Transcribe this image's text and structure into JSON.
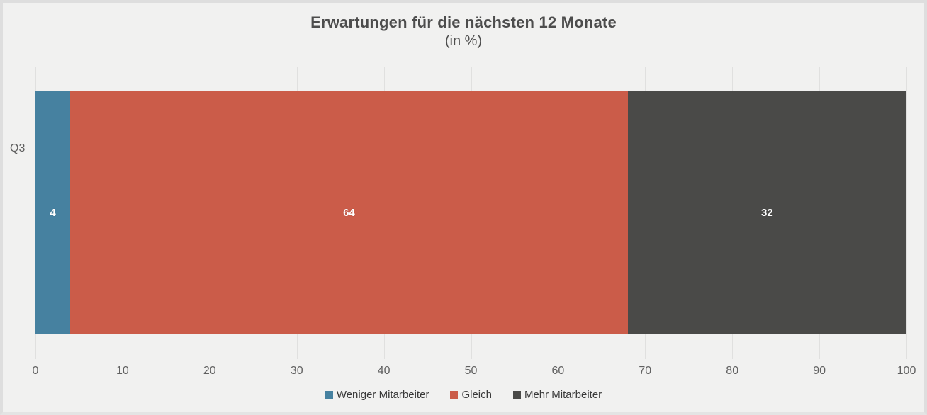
{
  "chart": {
    "title": "Erwartungen für die nächsten 12 Monate",
    "subtitle": "(in %)"
  },
  "chart_data": {
    "type": "bar",
    "orientation": "horizontal",
    "stacked": true,
    "title": "Erwartungen für die nächsten 12 Monate",
    "subtitle": "(in %)",
    "categories": [
      "Q3"
    ],
    "series": [
      {
        "name": "Weniger Mitarbeiter",
        "values": [
          4
        ],
        "color": "#4681A0"
      },
      {
        "name": "Gleich",
        "values": [
          64
        ],
        "color": "#CB5C49"
      },
      {
        "name": "Mehr Mitarbeiter",
        "values": [
          32
        ],
        "color": "#4A4A48"
      }
    ],
    "xlabel": "",
    "ylabel": "",
    "xlim": [
      0,
      100
    ],
    "xticks": [
      0,
      10,
      20,
      30,
      40,
      50,
      60,
      70,
      80,
      90,
      100
    ],
    "grid": true,
    "legend_position": "bottom",
    "data_label_color": "#ffffff"
  },
  "colors": {
    "background": "#f1f1f0",
    "frame_border": "#dedede",
    "gridline": "#e0e0df",
    "title_text": "#4d4d4d",
    "tick_text": "#606060",
    "legend_text": "#3a3a3a"
  }
}
